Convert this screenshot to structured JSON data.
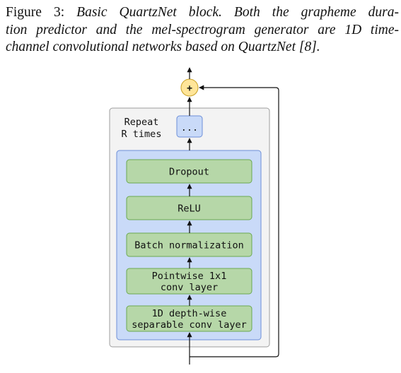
{
  "caption": {
    "label": "Figure 3:",
    "lines": [
      "Basic QuartzNet block.  Both the grapheme dura-",
      "tion predictor and the mel-spectrogram generator are 1D time-",
      "channel convolutional networks based on QuartzNet [8]."
    ]
  },
  "diagram": {
    "sum_symbol": "+",
    "repeat_label_line1": "Repeat",
    "repeat_label_line2": "R times",
    "ellipsis": "...",
    "layers": {
      "dropout": [
        "Dropout"
      ],
      "relu": [
        "ReLU"
      ],
      "batchnorm": [
        "Batch normalization"
      ],
      "pointwise": [
        "Pointwise 1x1",
        "conv layer"
      ],
      "depthwise": [
        "1D depth-wise",
        "separable conv layer"
      ]
    },
    "colors": {
      "outer_panel_fill": "#f3f3f3",
      "outer_panel_stroke": "#9e9e9e",
      "inner_panel_fill": "#c9daf8",
      "inner_panel_stroke": "#6d8fd8",
      "layer_fill": "#b6d7a8",
      "layer_stroke": "#6aa84f",
      "sum_fill": "#ffe599",
      "sum_stroke": "#c9a227"
    }
  }
}
